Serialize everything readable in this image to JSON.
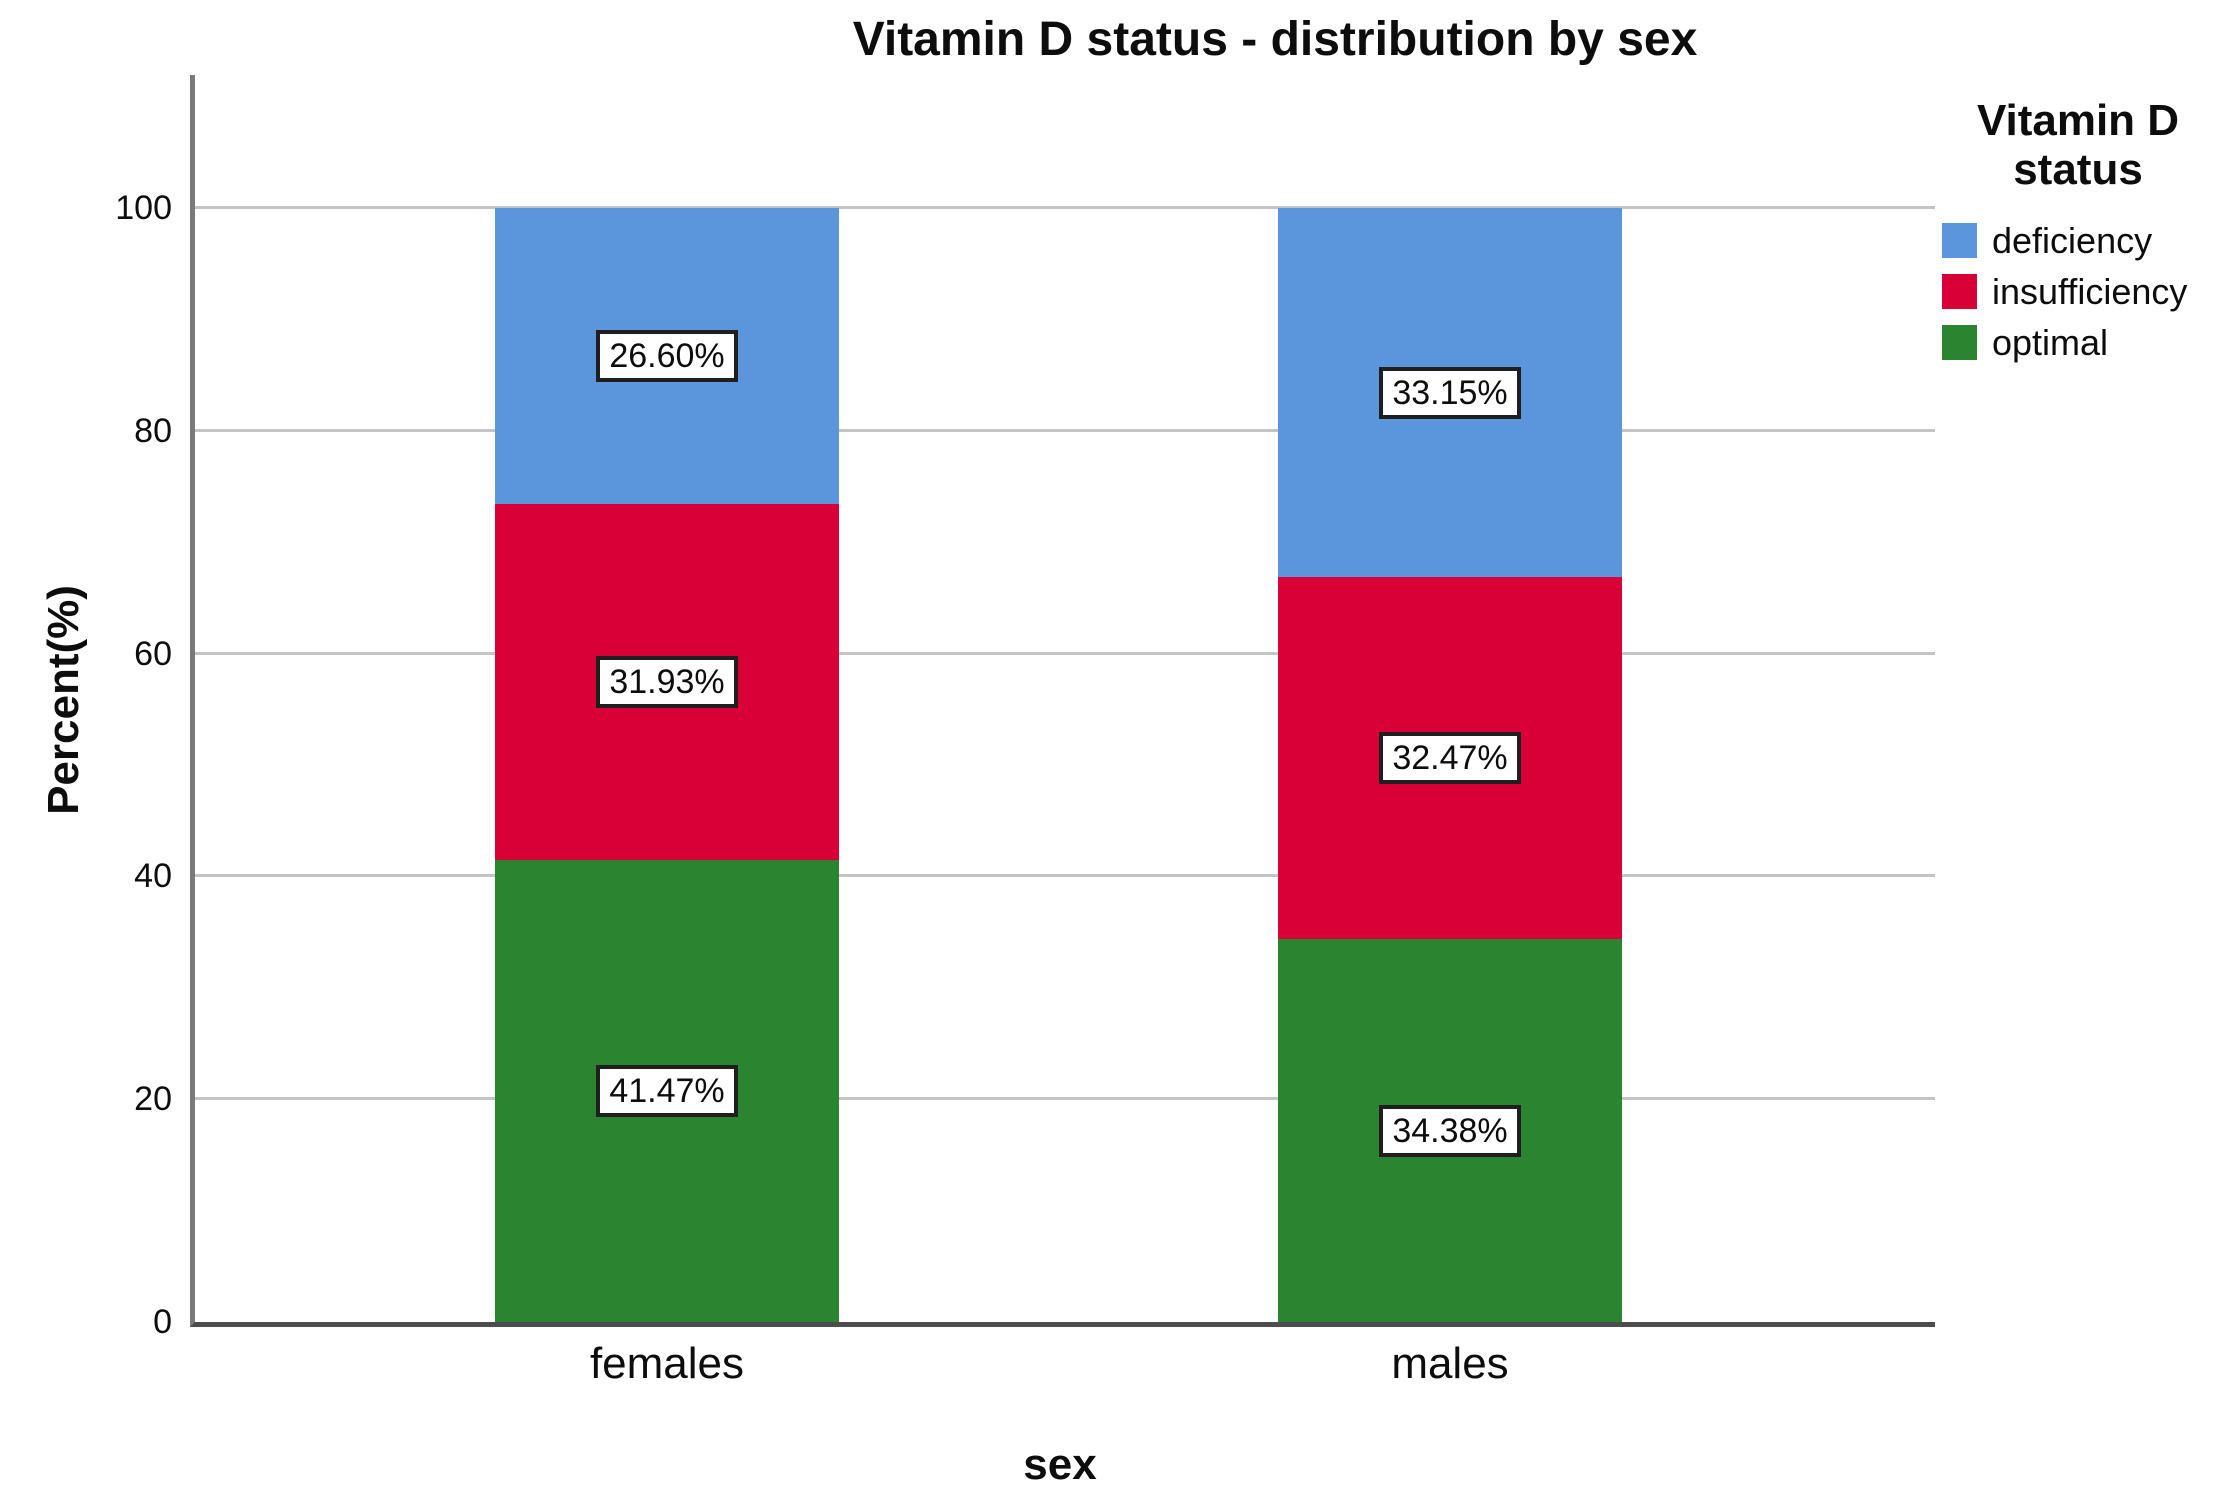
{
  "chart_data": {
    "type": "bar",
    "stacked": true,
    "title": "Vitamin D status - distribution by sex",
    "xlabel": "sex",
    "ylabel": "Percent(%)",
    "ylim": [
      0,
      112
    ],
    "yticks": [
      0,
      20,
      40,
      60,
      80,
      100
    ],
    "grid": true,
    "legend_position": "right",
    "legend_title": "Vitamin D status",
    "categories": [
      "females",
      "males"
    ],
    "series": [
      {
        "name": "optimal",
        "color": "#2B8430",
        "values": [
          41.47,
          34.38
        ],
        "data_labels": [
          "41.47%",
          "34.38%"
        ]
      },
      {
        "name": "insufficiency",
        "color": "#D90038",
        "values": [
          31.93,
          32.47
        ],
        "data_labels": [
          "31.93%",
          "32.47%"
        ]
      },
      {
        "name": "deficiency",
        "color": "#5B96DC",
        "values": [
          26.6,
          33.15
        ],
        "data_labels": [
          "26.60%",
          "33.15%"
        ]
      }
    ],
    "legend_order": [
      "deficiency",
      "insufficiency",
      "optimal"
    ]
  },
  "colors": {
    "gridline": "#C4C4C4",
    "y_axis_line": "#7A7A7A",
    "x_axis_line": "#4D4D4D"
  }
}
